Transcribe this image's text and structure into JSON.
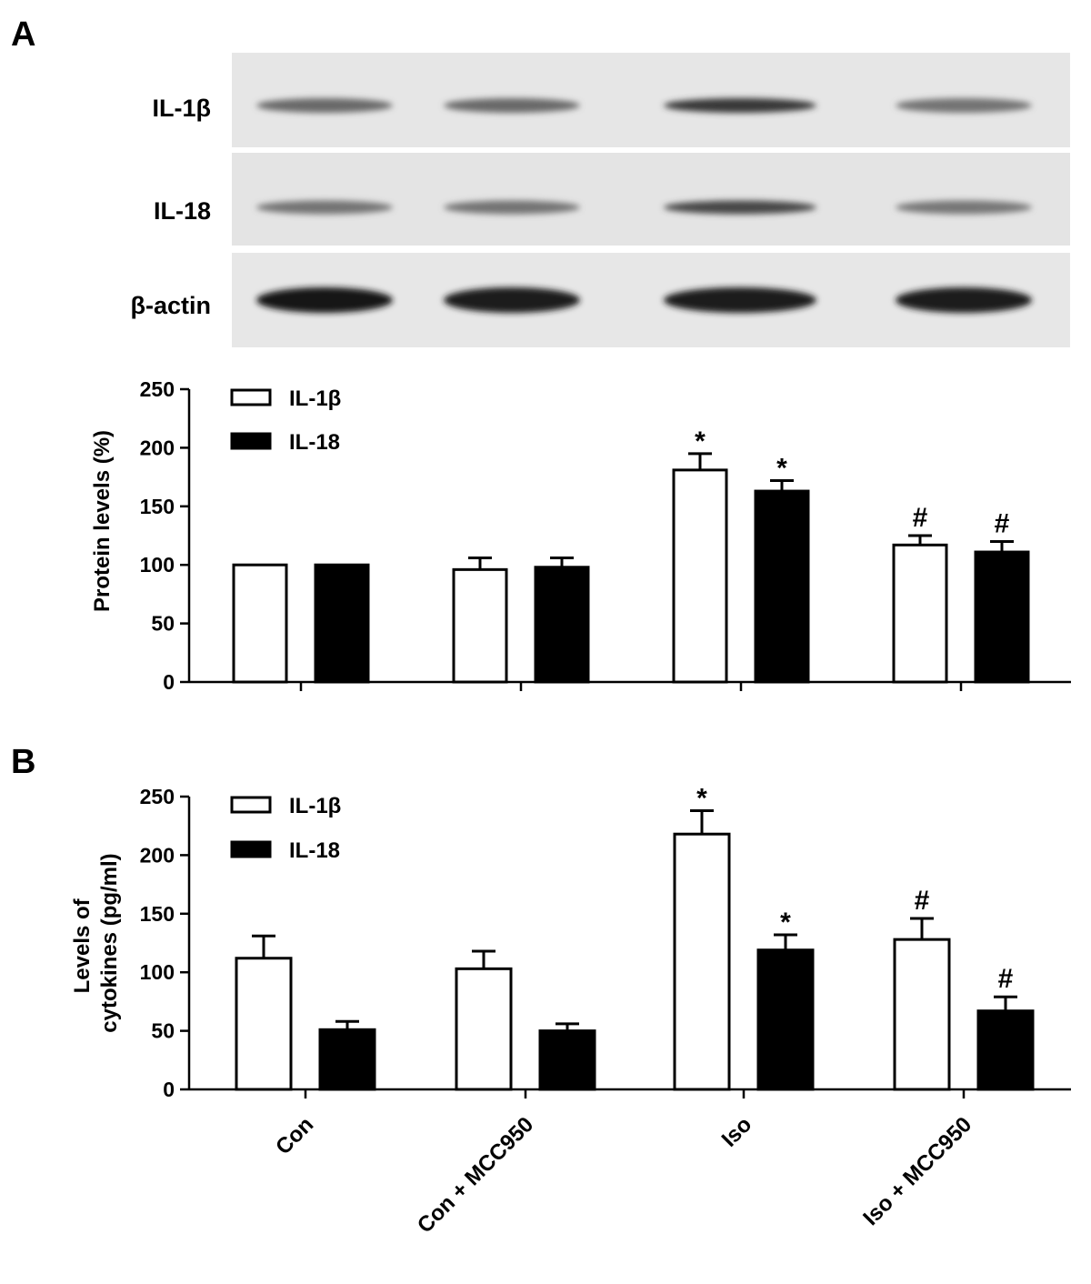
{
  "panel_a": {
    "letter": "A",
    "blot": {
      "rows": [
        {
          "label": "IL-1β",
          "intensity": [
            0.55,
            0.55,
            0.8,
            0.5
          ]
        },
        {
          "label": "IL-18",
          "intensity": [
            0.5,
            0.5,
            0.72,
            0.48
          ]
        },
        {
          "label": "β-actin",
          "intensity": [
            0.95,
            0.93,
            0.93,
            0.93
          ]
        }
      ]
    }
  },
  "panel_b": {
    "letter": "B"
  },
  "chart_data": [
    {
      "type": "bar",
      "panel": "A",
      "categories": [
        "Con",
        "Con + MCC950",
        "Iso",
        "Iso + MCC950"
      ],
      "series": [
        {
          "name": "IL-1β",
          "color": "#ffffff",
          "values": [
            100,
            96,
            181,
            117
          ],
          "errors": [
            0,
            10,
            14,
            8
          ],
          "marks": [
            "",
            "",
            "*",
            "#"
          ]
        },
        {
          "name": "IL-18",
          "color": "#000000",
          "values": [
            100,
            98,
            163,
            111
          ],
          "errors": [
            0,
            8,
            9,
            9
          ],
          "marks": [
            "",
            "",
            "*",
            "#"
          ]
        }
      ],
      "ylabel": "Protein levels (%)",
      "ylim": [
        0,
        250
      ],
      "yticks": [
        "0",
        "50",
        "100",
        "150",
        "200",
        "250"
      ],
      "legend": "top-left",
      "grid": false
    },
    {
      "type": "bar",
      "panel": "B",
      "categories": [
        "Con",
        "Con + MCC950",
        "Iso",
        "Iso + MCC950"
      ],
      "series": [
        {
          "name": "IL-1β",
          "color": "#ffffff",
          "values": [
            112,
            103,
            218,
            128
          ],
          "errors": [
            19,
            15,
            20,
            18
          ],
          "marks": [
            "",
            "",
            "*",
            "#"
          ]
        },
        {
          "name": "IL-18",
          "color": "#000000",
          "values": [
            51,
            50,
            119,
            67
          ],
          "errors": [
            7,
            6,
            13,
            12
          ],
          "marks": [
            "",
            "",
            "*",
            "#"
          ]
        }
      ],
      "ylabel_lines": [
        "Levels of",
        "cytokines (pg/ml)"
      ],
      "ylim": [
        0,
        250
      ],
      "yticks": [
        "0",
        "50",
        "100",
        "150",
        "200",
        "250"
      ],
      "legend": "top-left",
      "grid": false
    }
  ]
}
